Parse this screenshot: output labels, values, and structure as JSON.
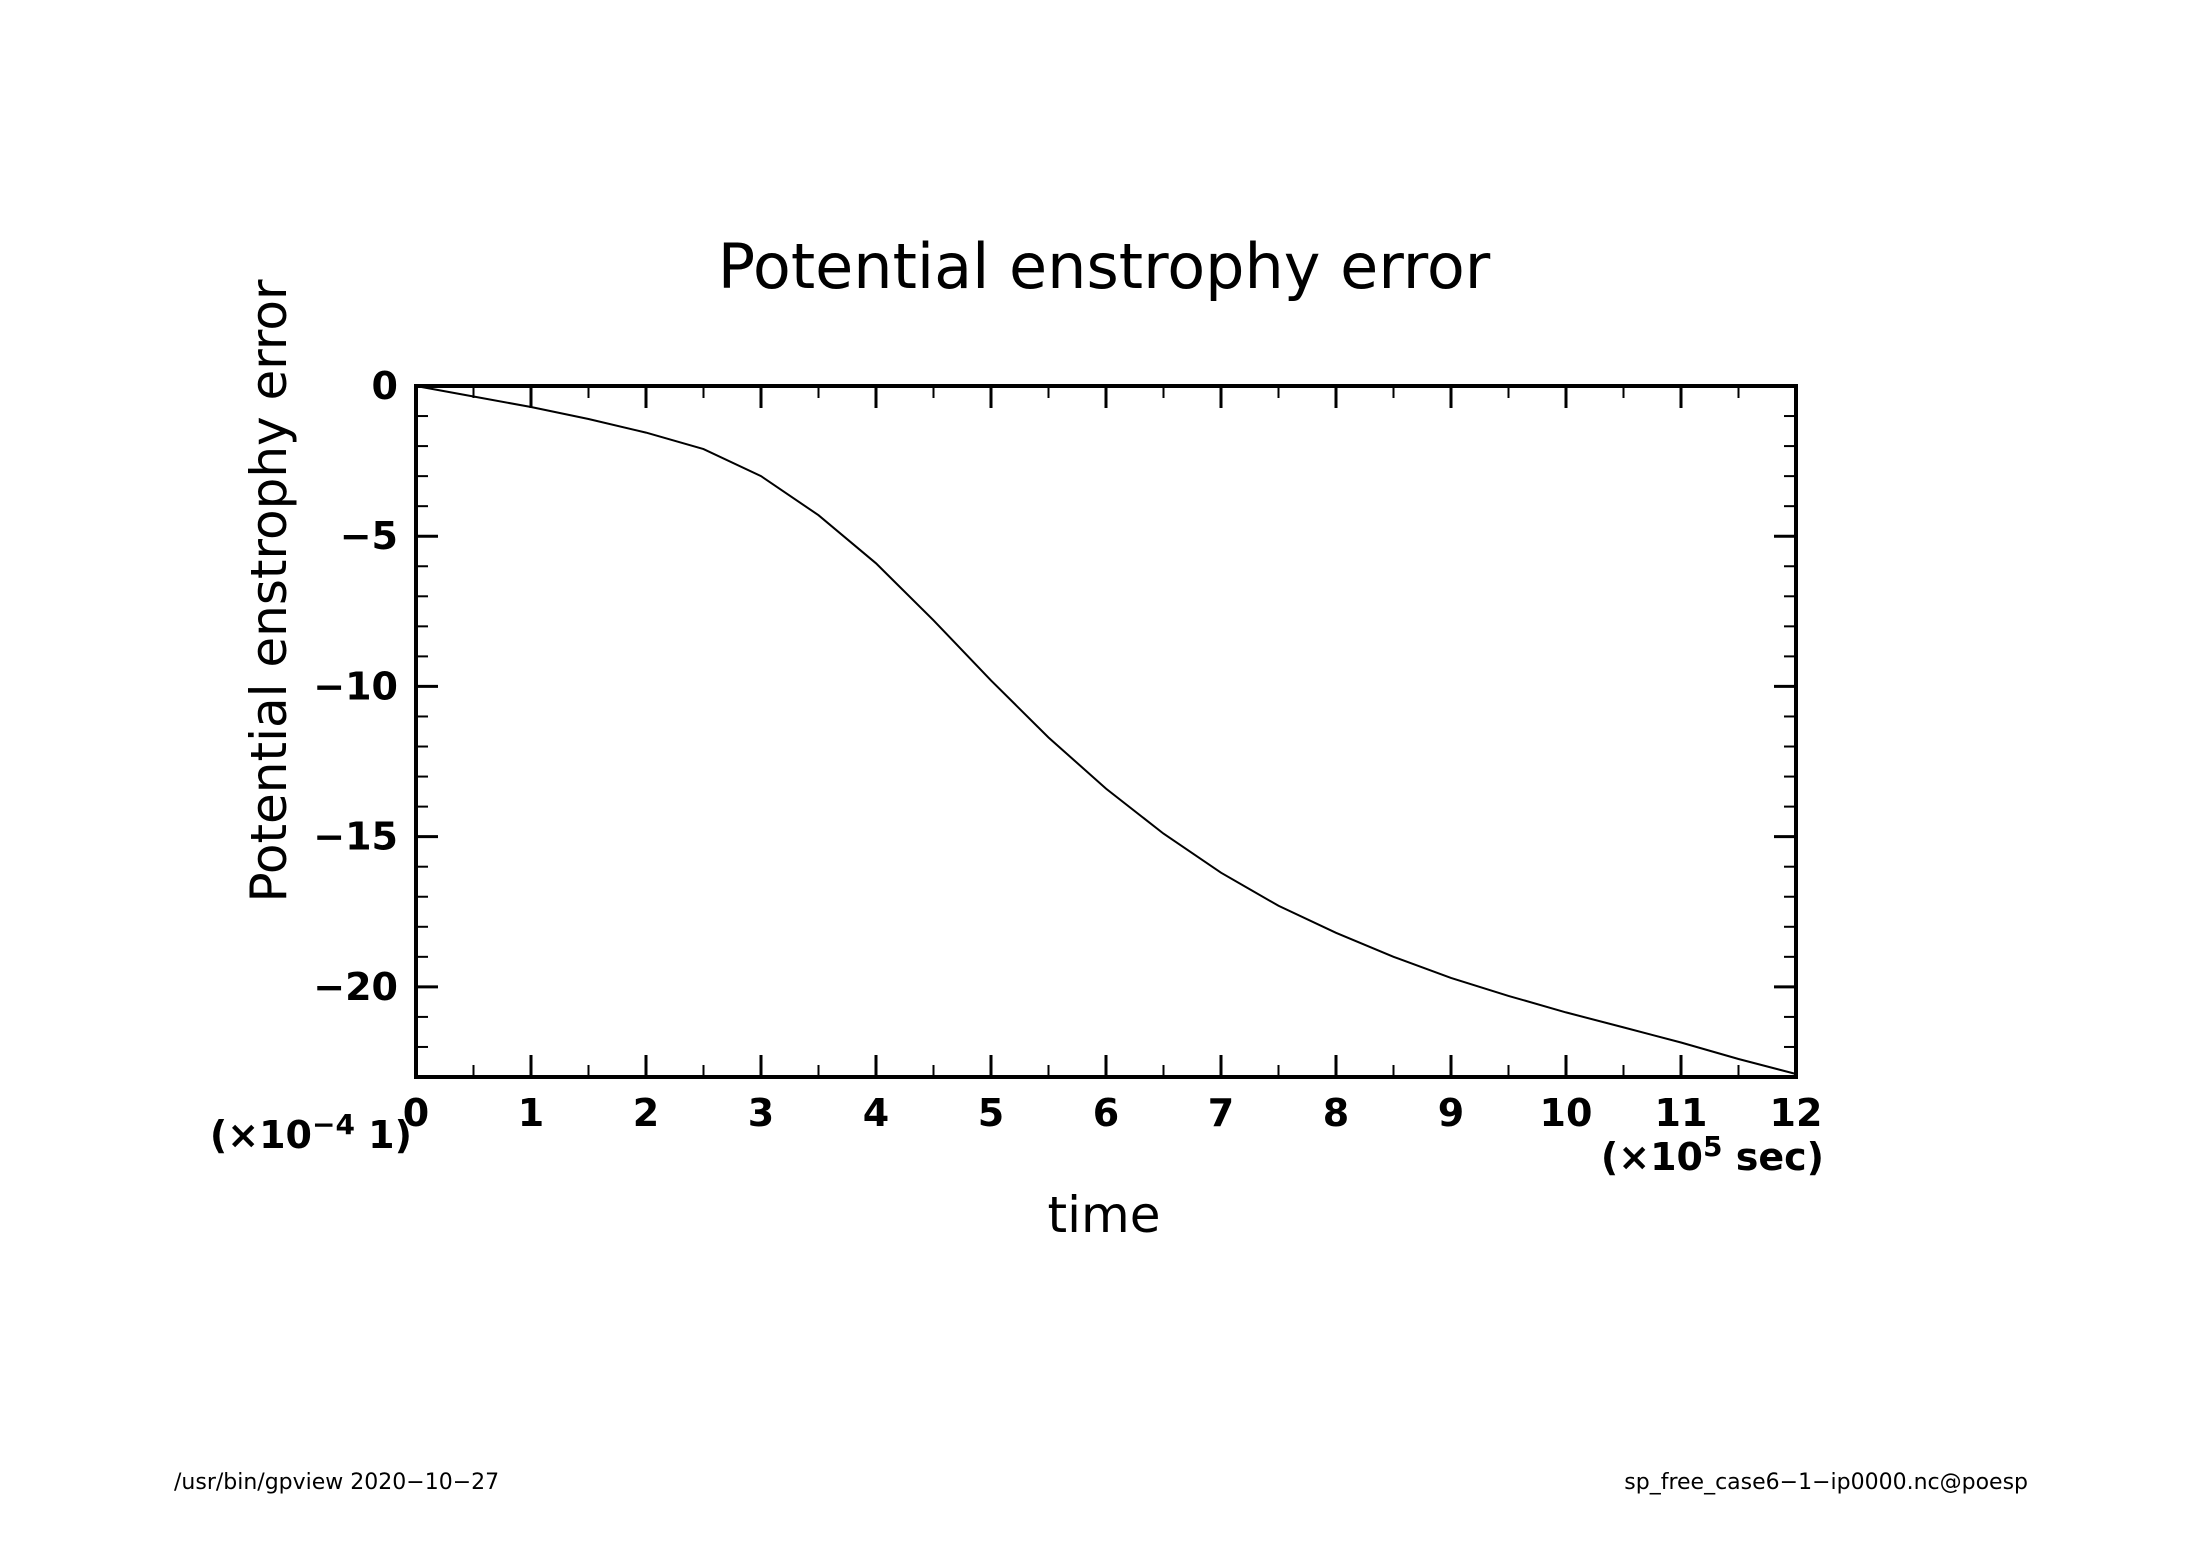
{
  "chart_data": {
    "type": "line",
    "title": "Potential enstrophy error",
    "xlabel": "time",
    "ylabel": "Potential enstrophy error",
    "x_scale_prefix": "(×10",
    "x_scale_exp": "5",
    "x_scale_suffix": " sec)",
    "y_scale_prefix": "(×10",
    "y_scale_exp": "−4",
    "y_scale_suffix": " 1)",
    "xlim": [
      0,
      12
    ],
    "ylim": [
      -23,
      0
    ],
    "x_ticks": [
      0,
      1,
      2,
      3,
      4,
      5,
      6,
      7,
      8,
      9,
      10,
      11,
      12
    ],
    "x_tick_labels": [
      "0",
      "1",
      "2",
      "3",
      "4",
      "5",
      "6",
      "7",
      "8",
      "9",
      "10",
      "11",
      "12"
    ],
    "y_ticks": [
      0,
      -5,
      -10,
      -15,
      -20
    ],
    "y_tick_labels": [
      "0",
      "−5",
      "−10",
      "−15",
      "−20"
    ],
    "grid": false,
    "series": [
      {
        "x": [
          0,
          0.5,
          1,
          1.5,
          2,
          2.5,
          3,
          3.5,
          4,
          4.5,
          5,
          5.5,
          6,
          6.5,
          7,
          7.5,
          8,
          8.5,
          9,
          9.5,
          10,
          10.5,
          11,
          11.5,
          12
        ],
        "y": [
          0,
          -0.35,
          -0.7,
          -1.1,
          -1.55,
          -2.1,
          -3.0,
          -4.3,
          -5.9,
          -7.8,
          -9.8,
          -11.7,
          -13.4,
          -14.9,
          -16.2,
          -17.3,
          -18.2,
          -19.0,
          -19.7,
          -20.3,
          -20.85,
          -21.35,
          -21.85,
          -22.4,
          -22.9
        ]
      }
    ]
  },
  "footer": {
    "left": "/usr/bin/gpview   2020−10−27",
    "right": "sp_free_case6−1−ip0000.nc@poesp"
  }
}
